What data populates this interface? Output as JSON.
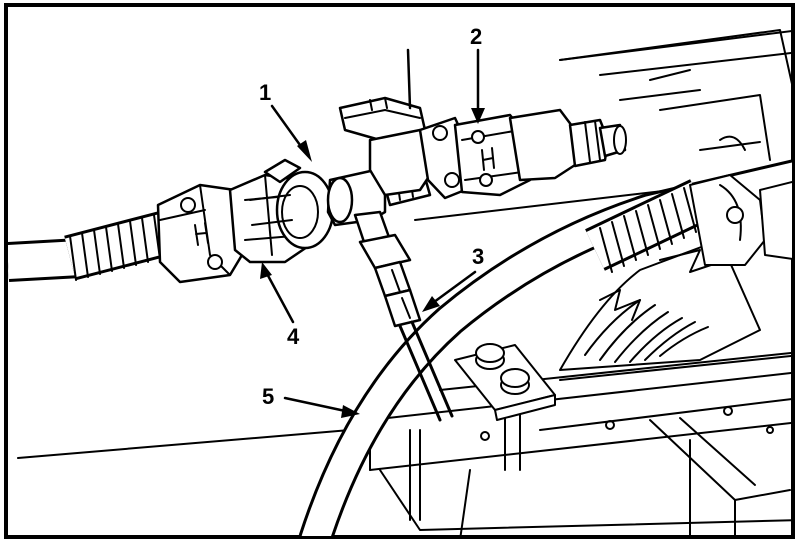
{
  "figure": {
    "callouts": [
      {
        "id": "1",
        "label": "1"
      },
      {
        "id": "2",
        "label": "2"
      },
      {
        "id": "3",
        "label": "3"
      },
      {
        "id": "4",
        "label": "4"
      },
      {
        "id": "5",
        "label": "5"
      }
    ],
    "colors": {
      "ink": "#000000",
      "paper": "#ffffff"
    }
  }
}
